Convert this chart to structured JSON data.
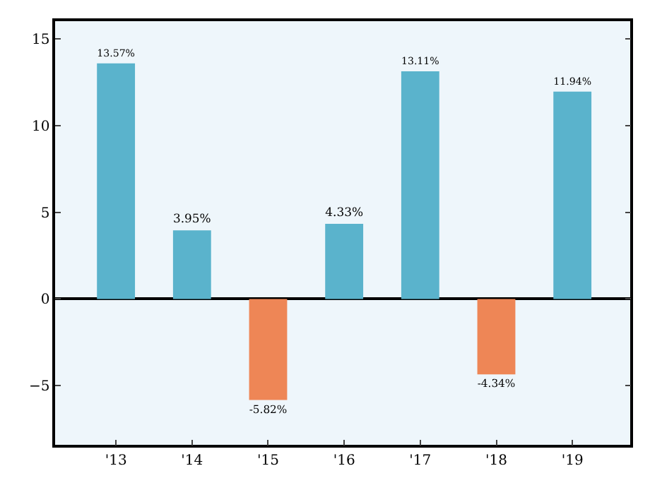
{
  "chart_data": {
    "type": "bar",
    "categories": [
      "'13",
      "'14",
      "'15",
      "'16",
      "'17",
      "'18",
      "'19"
    ],
    "values": [
      13.57,
      3.95,
      -5.82,
      4.33,
      13.11,
      -4.34,
      11.94
    ],
    "colors": [
      "#5ab3cc",
      "#5ab3cc",
      "#ee8656",
      "#5ab3cc",
      "#5ab3cc",
      "#ee8656",
      "#5ab3cc"
    ],
    "value_labels": [
      "13.57%",
      "3.95%",
      "-5.82%",
      "4.33%",
      "13.11%",
      "-4.34%",
      "11.94%"
    ],
    "ylim": [
      -8.4,
      16
    ],
    "yticks": [
      {
        "value": -5,
        "label": "−5"
      },
      0,
      5,
      10,
      15
    ]
  }
}
